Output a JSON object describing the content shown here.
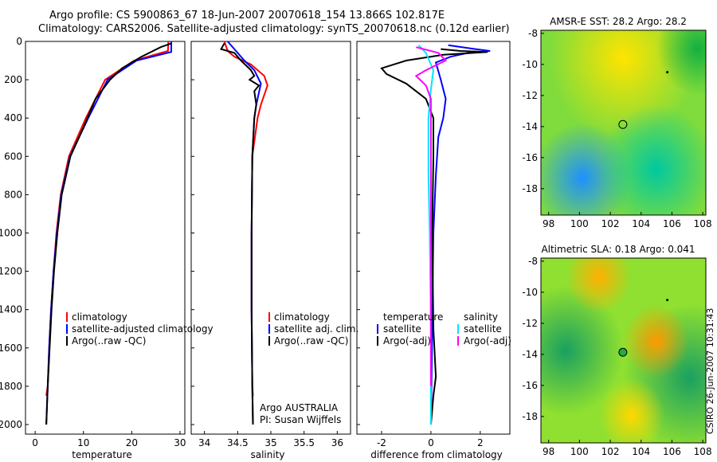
{
  "title": {
    "line1": "Argo profile: CS 5900863_67 18-Jun-2007 20070618_154 13.866S 102.817E",
    "line2": "Climatology: CARS2006. Satellite-adjusted climatology: synTS_20070618.nc (0.12d earlier)"
  },
  "footer": "CSIRO 26-Jun-2007 10:31:43",
  "colors": {
    "climatology": "#ff0000",
    "satellite": "#0000ff",
    "argo": "#000000",
    "satellite_salinity": "#00e5ff",
    "argo_adj_salinity": "#ff00ff"
  },
  "chart_data": [
    {
      "type": "line",
      "id": "temperature",
      "xlabel": "temperature",
      "xlim": [
        -2,
        31
      ],
      "ylim": [
        0,
        2050
      ],
      "xticks": [
        0,
        10,
        20,
        30
      ],
      "yticks": [
        0,
        200,
        400,
        600,
        800,
        1000,
        1200,
        1400,
        1600,
        1800,
        2000
      ],
      "series": [
        {
          "name": "climatology",
          "points": [
            [
              27.6,
              0
            ],
            [
              27.5,
              50
            ],
            [
              20.5,
              100
            ],
            [
              14.5,
              200
            ],
            [
              10.5,
              400
            ],
            [
              7.0,
              600
            ],
            [
              5.3,
              800
            ],
            [
              4.4,
              1000
            ],
            [
              3.8,
              1200
            ],
            [
              3.3,
              1400
            ],
            [
              2.9,
              1600
            ],
            [
              2.6,
              1800
            ],
            [
              2.3,
              1850
            ]
          ]
        },
        {
          "name": "satellite-adjusted climatology",
          "points": [
            [
              28.2,
              0
            ],
            [
              28.2,
              55
            ],
            [
              21.0,
              100
            ],
            [
              15.0,
              200
            ],
            [
              11.0,
              400
            ],
            [
              7.2,
              600
            ],
            [
              5.4,
              800
            ],
            [
              4.5,
              1000
            ],
            [
              3.8,
              1200
            ],
            [
              3.3,
              1400
            ],
            [
              2.9,
              1600
            ],
            [
              2.6,
              1800
            ],
            [
              2.3,
              2000
            ]
          ]
        },
        {
          "name": "Argo(..raw -QC)",
          "points": [
            [
              28.2,
              10
            ],
            [
              26.0,
              30
            ],
            [
              22.0,
              80
            ],
            [
              18.0,
              140
            ],
            [
              15.5,
              200
            ],
            [
              12.5,
              300
            ],
            [
              10.0,
              450
            ],
            [
              7.3,
              600
            ],
            [
              5.5,
              800
            ],
            [
              4.6,
              1000
            ],
            [
              3.9,
              1200
            ],
            [
              3.4,
              1400
            ],
            [
              3.0,
              1600
            ],
            [
              2.6,
              1800
            ],
            [
              2.3,
              2000
            ]
          ]
        }
      ],
      "legend": [
        "climatology",
        "satellite-adjusted climatology",
        "Argo(..raw -QC)"
      ]
    },
    {
      "type": "line",
      "id": "salinity",
      "xlabel": "salinity",
      "xlim": [
        33.8,
        36.2
      ],
      "ylim": [
        0,
        2050
      ],
      "xticks": [
        34,
        34.5,
        35,
        35.5,
        36
      ],
      "series": [
        {
          "name": "climatology",
          "points": [
            [
              34.3,
              0
            ],
            [
              34.35,
              50
            ],
            [
              34.45,
              80
            ],
            [
              34.7,
              120
            ],
            [
              34.9,
              180
            ],
            [
              34.95,
              230
            ],
            [
              34.85,
              330
            ],
            [
              34.8,
              400
            ],
            [
              34.72,
              600
            ],
            [
              34.71,
              1000
            ],
            [
              34.71,
              1400
            ],
            [
              34.72,
              1800
            ],
            [
              34.73,
              1850
            ]
          ]
        },
        {
          "name": "satellite adj. clim.",
          "points": [
            [
              34.35,
              0
            ],
            [
              34.5,
              60
            ],
            [
              34.6,
              100
            ],
            [
              34.75,
              150
            ],
            [
              34.85,
              220
            ],
            [
              34.78,
              330
            ],
            [
              34.75,
              400
            ],
            [
              34.72,
              600
            ],
            [
              34.71,
              1000
            ],
            [
              34.71,
              1400
            ],
            [
              34.72,
              1800
            ],
            [
              34.73,
              2000
            ]
          ]
        },
        {
          "name": "Argo(..raw -QC)",
          "points": [
            [
              34.3,
              10
            ],
            [
              34.25,
              40
            ],
            [
              34.45,
              60
            ],
            [
              34.55,
              100
            ],
            [
              34.7,
              150
            ],
            [
              34.75,
              180
            ],
            [
              34.68,
              200
            ],
            [
              34.82,
              230
            ],
            [
              34.75,
              260
            ],
            [
              34.78,
              330
            ],
            [
              34.75,
              400
            ],
            [
              34.72,
              600
            ],
            [
              34.71,
              1000
            ],
            [
              34.71,
              1400
            ],
            [
              34.72,
              1800
            ],
            [
              34.73,
              2000
            ]
          ]
        }
      ],
      "legend": [
        "climatology",
        "satellite adj. clim.",
        "Argo(..raw -QC)"
      ],
      "annotations": [
        "Argo AUSTRALIA",
        "PI: Susan Wijffels"
      ]
    },
    {
      "type": "line",
      "id": "difference",
      "xlabel": "difference from climatology",
      "xlim": [
        -3,
        3.2
      ],
      "ylim": [
        0,
        2050
      ],
      "xticks": [
        -2,
        0,
        2
      ],
      "series": [
        {
          "name": "satellite (temperature)",
          "points": [
            [
              0.7,
              20
            ],
            [
              1.8,
              40
            ],
            [
              2.4,
              50
            ],
            [
              1.5,
              60
            ],
            [
              0.8,
              80
            ],
            [
              0.2,
              110
            ],
            [
              0.4,
              200
            ],
            [
              0.6,
              300
            ],
            [
              0.5,
              400
            ],
            [
              0.3,
              500
            ],
            [
              0.2,
              700
            ],
            [
              0.1,
              1000
            ],
            [
              0.05,
              1500
            ],
            [
              0.0,
              2000
            ]
          ]
        },
        {
          "name": "Argo(-adj) (temperature)",
          "points": [
            [
              0.4,
              40
            ],
            [
              1.2,
              50
            ],
            [
              2.3,
              55
            ],
            [
              0.5,
              70
            ],
            [
              -1.0,
              100
            ],
            [
              -2.0,
              140
            ],
            [
              -1.8,
              170
            ],
            [
              -1.0,
              220
            ],
            [
              -0.2,
              300
            ],
            [
              0.1,
              400
            ],
            [
              0.1,
              600
            ],
            [
              0.05,
              1000
            ],
            [
              0.1,
              1500
            ],
            [
              0.2,
              1750
            ],
            [
              0.1,
              1850
            ],
            [
              0.0,
              2000
            ]
          ]
        },
        {
          "name": "satellite (salinity)",
          "points": [
            [
              -0.5,
              20
            ],
            [
              -0.2,
              60
            ],
            [
              0.1,
              150
            ],
            [
              0.0,
              250
            ],
            [
              -0.1,
              400
            ],
            [
              -0.1,
              700
            ],
            [
              -0.05,
              1000
            ],
            [
              0.0,
              1500
            ],
            [
              0.0,
              2000
            ]
          ]
        },
        {
          "name": "Argo(-adj) (salinity)",
          "points": [
            [
              -0.6,
              30
            ],
            [
              0.3,
              60
            ],
            [
              0.6,
              100
            ],
            [
              -0.2,
              150
            ],
            [
              -0.6,
              180
            ],
            [
              -0.2,
              230
            ],
            [
              0.0,
              300
            ],
            [
              0.0,
              1500
            ],
            [
              0.0,
              1800
            ]
          ]
        }
      ],
      "legend_headers": [
        "temperature",
        "salinity"
      ],
      "legend": [
        "satellite",
        "Argo(-adj)",
        "satellite",
        "Argo(-adj)"
      ]
    },
    {
      "type": "heatmap",
      "id": "sst-map",
      "title": "AMSR-E SST: 28.2 Argo: 28.2",
      "xlim": [
        97.5,
        108.2
      ],
      "ylim": [
        -19.7,
        -7.8
      ],
      "xticks": [
        98,
        100,
        102,
        104,
        106,
        108
      ],
      "yticks": [
        -8,
        -10,
        -12,
        -14,
        -16,
        -18
      ],
      "marker": {
        "lon": 102.817,
        "lat": -13.866,
        "filled": false
      },
      "small_marker": {
        "lon": 105.7,
        "lat": -10.5
      }
    },
    {
      "type": "heatmap",
      "id": "sla-map",
      "title": "Altimetric SLA: 0.18 Argo: 0.041",
      "xlim": [
        97.5,
        108.2
      ],
      "ylim": [
        -19.7,
        -7.8
      ],
      "xticks": [
        98,
        100,
        102,
        104,
        106,
        108
      ],
      "yticks": [
        -8,
        -10,
        -12,
        -14,
        -16,
        -18
      ],
      "marker": {
        "lon": 102.817,
        "lat": -13.866,
        "filled": true
      },
      "small_marker": {
        "lon": 105.7,
        "lat": -10.5
      }
    }
  ]
}
